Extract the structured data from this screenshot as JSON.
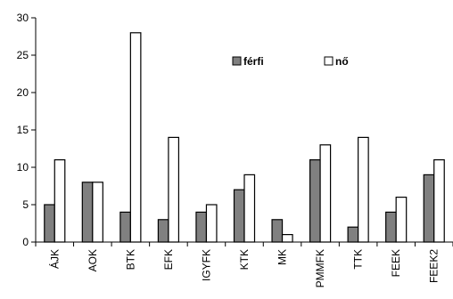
{
  "chart_data": {
    "type": "bar",
    "title": "",
    "xlabel": "",
    "ylabel": "",
    "categories": [
      "ÁJK",
      "AOK",
      "BTK",
      "EFK",
      "IGYFK",
      "KTK",
      "MK",
      "PMMFK",
      "TTK",
      "FEEK",
      "FEEK2"
    ],
    "series": [
      {
        "name": "férfi",
        "values": [
          5,
          8,
          4,
          3,
          4,
          7,
          3,
          11,
          2,
          4,
          9
        ],
        "color": "#808080"
      },
      {
        "name": "nő",
        "values": [
          11,
          8,
          28,
          14,
          5,
          9,
          1,
          13,
          14,
          6,
          11
        ],
        "color": "#ffffff"
      }
    ],
    "ylim": [
      0,
      30
    ],
    "yticks": [
      0,
      5,
      10,
      15,
      20,
      25,
      30
    ],
    "grid": false,
    "legend_position": "upper-right",
    "orientation_of_category_labels": "vertical"
  }
}
